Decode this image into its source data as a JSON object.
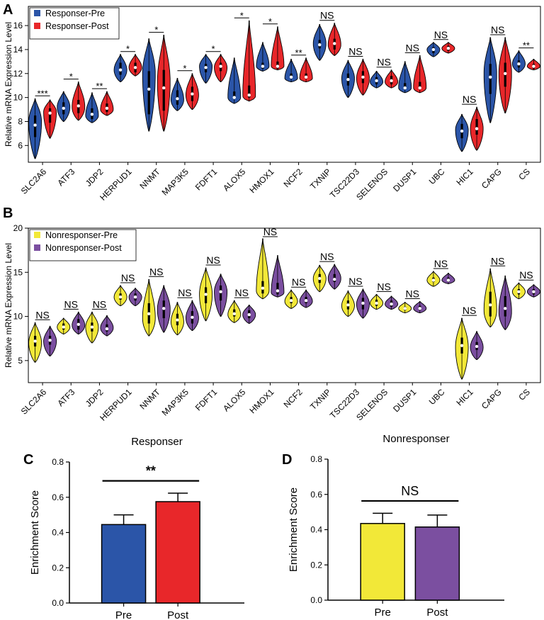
{
  "colors": {
    "responder_pre": "#2b55a8",
    "responder_post": "#e8272a",
    "nonresponder_pre": "#f2e838",
    "nonresponder_post": "#7b4fa0",
    "axis": "#000000"
  },
  "panel_labels": {
    "a": "A",
    "b": "B",
    "c": "C",
    "d": "D"
  },
  "chart_data": [
    {
      "id": "A",
      "type": "violin",
      "ylabel": "Relative mRNA Expression Level",
      "ylim": [
        4.6,
        17.6
      ],
      "yticks": [
        6,
        8,
        10,
        12,
        14,
        16
      ],
      "categories": [
        "SLC2A6",
        "ATF3",
        "JDP2",
        "HERPUD1",
        "NNMT",
        "MAP3K5",
        "FDFT1",
        "ALOX5",
        "HMOX1",
        "NCF2",
        "TXNIP",
        "TSC22D3",
        "SELENOS",
        "DUSP1",
        "UBC",
        "HIC1",
        "CAPG",
        "CS"
      ],
      "legend": [
        "Responser-Pre",
        "Responser-Post"
      ],
      "legend_position": "top-left",
      "significance": [
        "***",
        "*",
        "**",
        "*",
        "*",
        "*",
        "*",
        "*",
        "*",
        "**",
        "NS",
        "NS",
        "NS",
        "NS",
        "NS",
        "NS",
        "NS",
        "**"
      ],
      "series": [
        {
          "name": "Responser-Pre",
          "min": [
            4.9,
            8.0,
            7.9,
            11.3,
            7.2,
            8.9,
            11.2,
            9.5,
            12.2,
            11.3,
            13.1,
            10.0,
            10.8,
            10.4,
            13.4,
            5.5,
            7.9,
            12.1
          ],
          "q1": [
            6.7,
            8.6,
            8.2,
            11.9,
            8.6,
            9.4,
            12.1,
            9.9,
            12.4,
            11.6,
            14.1,
            11.0,
            11.1,
            10.8,
            13.7,
            6.6,
            10.3,
            12.5
          ],
          "median": [
            7.7,
            9.1,
            8.6,
            12.3,
            10.7,
            9.9,
            12.5,
            10.0,
            12.6,
            11.7,
            14.4,
            11.5,
            11.4,
            10.8,
            14.0,
            7.2,
            11.7,
            12.8
          ],
          "q3": [
            8.5,
            9.6,
            9.1,
            12.9,
            12.2,
            10.6,
            12.8,
            10.5,
            12.9,
            12.0,
            14.8,
            12.0,
            11.7,
            11.2,
            14.2,
            7.8,
            12.8,
            13.1
          ],
          "max": [
            9.9,
            10.5,
            10.4,
            13.6,
            14.9,
            11.6,
            13.6,
            13.3,
            14.6,
            13.2,
            16.1,
            13.1,
            12.2,
            13.0,
            14.6,
            8.6,
            15.0,
            13.9
          ],
          "mode": [
            8.0,
            9.2,
            8.5,
            12.3,
            12.0,
            9.8,
            12.6,
            10.0,
            12.6,
            11.6,
            14.5,
            11.6,
            11.3,
            10.8,
            14.0,
            7.3,
            12.0,
            12.8
          ]
        },
        {
          "name": "Responser-Post",
          "min": [
            6.6,
            8.1,
            8.5,
            11.8,
            7.2,
            9.0,
            11.3,
            9.7,
            12.3,
            11.3,
            13.5,
            10.2,
            10.8,
            10.4,
            13.7,
            5.6,
            8.7,
            12.3
          ],
          "q1": [
            7.9,
            8.7,
            8.8,
            12.1,
            8.9,
            9.7,
            12.2,
            10.0,
            12.4,
            11.6,
            14.0,
            11.2,
            11.1,
            10.8,
            13.9,
            6.9,
            10.9,
            12.4
          ],
          "median": [
            8.7,
            9.3,
            9.1,
            12.5,
            10.8,
            10.3,
            12.6,
            10.2,
            12.6,
            11.7,
            14.5,
            11.7,
            11.4,
            10.8,
            14.1,
            7.4,
            12.0,
            12.6
          ],
          "q3": [
            9.1,
            9.8,
            9.5,
            12.9,
            12.3,
            10.9,
            12.9,
            11.0,
            13.0,
            12.0,
            14.9,
            12.2,
            11.8,
            11.3,
            14.3,
            8.2,
            12.9,
            12.8
          ],
          "max": [
            9.8,
            11.3,
            10.5,
            13.6,
            15.2,
            12.0,
            13.6,
            16.4,
            15.9,
            13.3,
            16.2,
            13.2,
            12.3,
            13.5,
            14.6,
            9.2,
            15.0,
            13.2
          ],
          "mode": [
            8.8,
            9.2,
            9.0,
            12.5,
            11.3,
            10.2,
            12.5,
            10.1,
            12.6,
            11.6,
            14.4,
            11.6,
            11.3,
            10.8,
            14.1,
            7.4,
            12.0,
            12.6
          ]
        }
      ]
    },
    {
      "id": "B",
      "type": "violin",
      "ylabel": "Relative mRNA Expression Level",
      "ylim": [
        2.5,
        20
      ],
      "yticks": [
        5,
        10,
        15,
        20
      ],
      "categories": [
        "SLC2A6",
        "ATF3",
        "JDP2",
        "HERPUD1",
        "NNMT",
        "MAP3K5",
        "FDFT1",
        "ALOX5",
        "HMOX1",
        "NCF2",
        "TXNIP",
        "TSC22D3",
        "SELENOS",
        "DUSP1",
        "UBC",
        "HIC1",
        "CAPG",
        "CS"
      ],
      "legend": [
        "Nonresponser-Pre",
        "Nonresponser-Post"
      ],
      "legend_position": "top-left",
      "significance": [
        "NS",
        "NS",
        "NS",
        "NS",
        "NS",
        "NS",
        "NS",
        "NS",
        "NS",
        "NS",
        "NS",
        "NS",
        "NS",
        "NS",
        "NS",
        "NS",
        "NS",
        "NS"
      ],
      "series": [
        {
          "name": "Nonresponser-Pre",
          "min": [
            4.8,
            8.0,
            7.0,
            11.2,
            7.8,
            7.9,
            9.5,
            9.3,
            12.0,
            10.9,
            12.8,
            10.0,
            10.8,
            10.4,
            13.4,
            2.9,
            8.8,
            12.0
          ],
          "q1": [
            6.6,
            8.5,
            8.3,
            11.9,
            9.2,
            9.0,
            11.5,
            10.0,
            12.6,
            11.5,
            13.8,
            10.8,
            11.2,
            10.7,
            13.9,
            5.8,
            10.0,
            12.5
          ],
          "median": [
            7.2,
            8.8,
            8.8,
            12.2,
            10.3,
            9.6,
            12.5,
            10.3,
            13.2,
            11.8,
            14.3,
            11.3,
            11.5,
            10.9,
            14.1,
            6.7,
            11.3,
            12.8
          ],
          "q3": [
            7.8,
            9.2,
            9.3,
            12.6,
            11.5,
            10.3,
            13.3,
            10.8,
            14.0,
            12.2,
            14.8,
            11.8,
            11.9,
            11.1,
            14.4,
            7.6,
            12.8,
            13.1
          ],
          "max": [
            9.3,
            9.8,
            10.5,
            13.5,
            14.2,
            11.6,
            15.5,
            11.8,
            18.8,
            13.0,
            15.8,
            12.9,
            12.5,
            11.6,
            15.1,
            9.8,
            15.4,
            13.8
          ],
          "mode": [
            7.0,
            8.8,
            8.8,
            12.2,
            9.8,
            9.4,
            12.5,
            10.2,
            12.9,
            11.7,
            14.3,
            11.2,
            11.5,
            10.9,
            14.1,
            6.5,
            10.7,
            12.8
          ]
        },
        {
          "name": "Nonresponser-Post",
          "min": [
            5.5,
            8.0,
            7.8,
            11.2,
            8.2,
            8.4,
            10.0,
            9.2,
            12.2,
            11.0,
            13.1,
            9.8,
            10.8,
            10.4,
            13.7,
            5.1,
            8.5,
            12.2
          ],
          "q1": [
            6.8,
            8.5,
            8.3,
            11.8,
            9.8,
            9.2,
            11.8,
            9.8,
            12.5,
            11.5,
            13.9,
            10.8,
            11.1,
            10.7,
            13.9,
            6.2,
            10.0,
            12.5
          ],
          "median": [
            7.3,
            9.1,
            8.6,
            12.2,
            10.9,
            9.9,
            12.8,
            10.2,
            12.9,
            11.8,
            14.2,
            11.5,
            11.4,
            10.9,
            14.1,
            6.6,
            10.9,
            12.8
          ],
          "q3": [
            7.8,
            9.7,
            9.1,
            12.6,
            11.8,
            10.6,
            13.5,
            10.7,
            13.8,
            12.2,
            14.8,
            12.1,
            11.8,
            11.2,
            14.4,
            7.1,
            12.3,
            13.1
          ],
          "max": [
            8.9,
            10.5,
            10.1,
            13.2,
            13.5,
            11.8,
            14.8,
            11.3,
            16.9,
            13.0,
            15.9,
            13.1,
            12.3,
            11.7,
            14.9,
            8.3,
            14.6,
            13.6
          ],
          "mode": [
            7.2,
            9.0,
            8.7,
            12.2,
            10.8,
            9.8,
            12.8,
            10.2,
            12.7,
            11.7,
            14.3,
            11.4,
            11.4,
            10.9,
            14.1,
            6.5,
            10.5,
            12.8
          ]
        }
      ]
    },
    {
      "id": "C",
      "type": "bar",
      "title": "Responser",
      "ylabel": "Enrichment Score",
      "xlabel": "",
      "ylim": [
        0,
        0.8
      ],
      "yticks": [
        0.0,
        0.2,
        0.4,
        0.6,
        0.8
      ],
      "categories": [
        "Pre",
        "Post"
      ],
      "values": [
        0.445,
        0.575
      ],
      "errors": [
        0.055,
        0.048
      ],
      "significance": "**"
    },
    {
      "id": "D",
      "type": "bar",
      "title": "Nonresponser",
      "ylabel": "Enrichment Score",
      "xlabel": "",
      "ylim": [
        0,
        0.8
      ],
      "yticks": [
        0.0,
        0.2,
        0.4,
        0.6,
        0.8
      ],
      "categories": [
        "Pre",
        "Post"
      ],
      "values": [
        0.435,
        0.415
      ],
      "errors": [
        0.058,
        0.068
      ],
      "significance": "NS"
    }
  ]
}
